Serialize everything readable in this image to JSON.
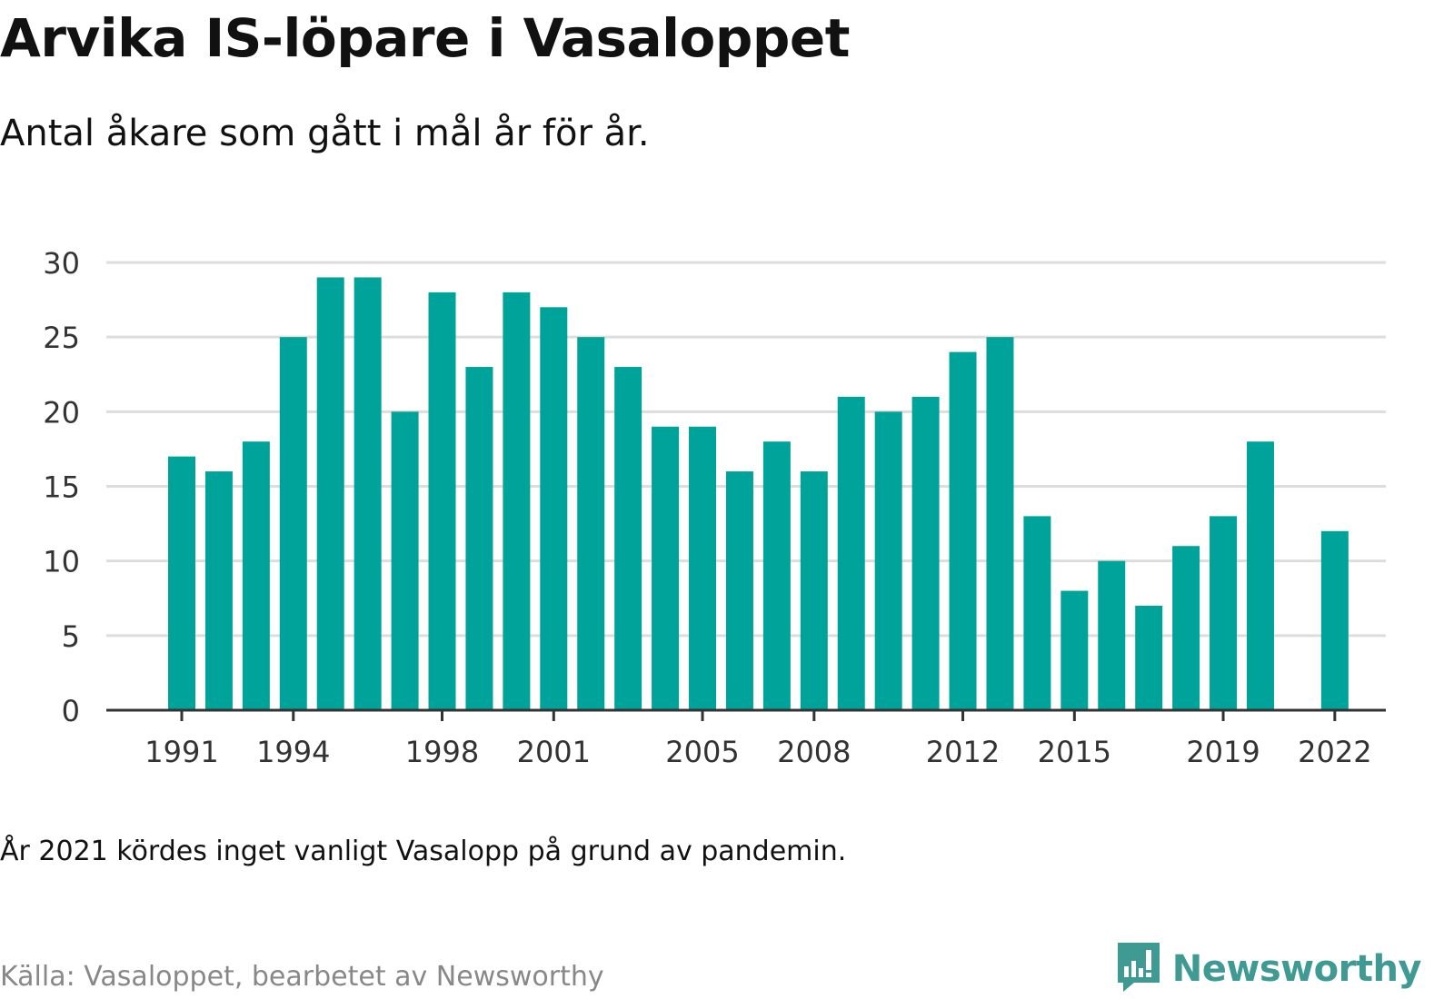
{
  "title": "Arvika IS-löpare i Vasaloppet",
  "subtitle": "Antal åkare som gått i mål år för år.",
  "note": "År 2021 kördes inget vanligt Vasalopp på grund av pandemin.",
  "source": "Källa: Vasaloppet, bearbetet av Newsworthy",
  "brand": {
    "name": "Newsworthy",
    "icon": "newsworthy-logo-icon",
    "color": "#3f9a93"
  },
  "colors": {
    "bar": "#00a39a",
    "grid": "#dddddd",
    "axis": "#333333"
  },
  "chart_data": {
    "type": "bar",
    "title": "Arvika IS-löpare i Vasaloppet",
    "subtitle": "Antal åkare som gått i mål år för år.",
    "xlabel": "",
    "ylabel": "",
    "ylim": [
      0,
      30
    ],
    "yticks": [
      0,
      5,
      10,
      15,
      20,
      25,
      30
    ],
    "xtick_labels": [
      "1991",
      "1994",
      "1998",
      "2001",
      "2005",
      "2008",
      "2012",
      "2015",
      "2019",
      "2022"
    ],
    "grid": true,
    "legend": "none",
    "categories": [
      1991,
      1992,
      1993,
      1994,
      1995,
      1996,
      1997,
      1998,
      1999,
      2000,
      2001,
      2002,
      2003,
      2004,
      2005,
      2006,
      2007,
      2008,
      2009,
      2010,
      2011,
      2012,
      2013,
      2014,
      2015,
      2016,
      2017,
      2018,
      2019,
      2020,
      2021,
      2022
    ],
    "values": [
      17,
      16,
      18,
      25,
      29,
      29,
      20,
      28,
      23,
      28,
      27,
      25,
      23,
      19,
      19,
      16,
      18,
      16,
      21,
      20,
      21,
      24,
      25,
      13,
      8,
      10,
      7,
      11,
      13,
      18,
      null,
      12
    ]
  }
}
